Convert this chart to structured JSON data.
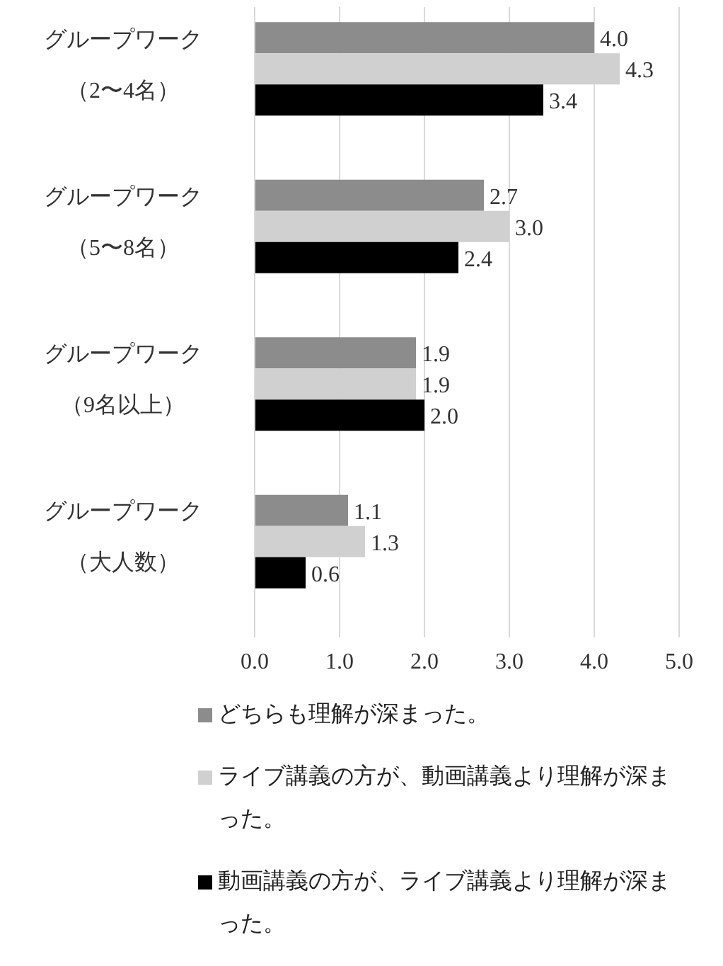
{
  "chart_data": {
    "type": "bar",
    "orientation": "horizontal",
    "categories": [
      "グループワーク（2〜4名）",
      "グループワーク（5〜8名）",
      "グループワーク（9名以上）",
      "グループワーク（大人数）"
    ],
    "series": [
      {
        "name": "どちらも理解が深まった。",
        "color": "#8c8c8c",
        "values": [
          4.0,
          2.7,
          1.9,
          1.1
        ],
        "value_labels": [
          "4.0",
          "2.7",
          "1.9",
          "1.1"
        ]
      },
      {
        "name": "ライブ講義の方が、動画講義より理解が深まった。",
        "color": "#d0d0d0",
        "values": [
          4.3,
          3.0,
          1.9,
          1.3
        ],
        "value_labels": [
          "4.3",
          "3.0",
          "1.9",
          "1.3"
        ]
      },
      {
        "name": "動画講義の方が、ライブ講義より理解が深まった。",
        "color": "#000000",
        "values": [
          3.4,
          2.4,
          2.0,
          0.6
        ],
        "value_labels": [
          "3.4",
          "2.4",
          "2.0",
          "0.6"
        ]
      }
    ],
    "xlim": [
      0,
      5
    ],
    "xticks": [
      {
        "value": 0,
        "label": "0.0"
      },
      {
        "value": 1,
        "label": "1.0"
      },
      {
        "value": 2,
        "label": "2.0"
      },
      {
        "value": 3,
        "label": "3.0"
      },
      {
        "value": 4,
        "label": "4.0"
      },
      {
        "value": 5,
        "label": "5.0"
      }
    ],
    "grid": "x",
    "legend": "bottom"
  }
}
